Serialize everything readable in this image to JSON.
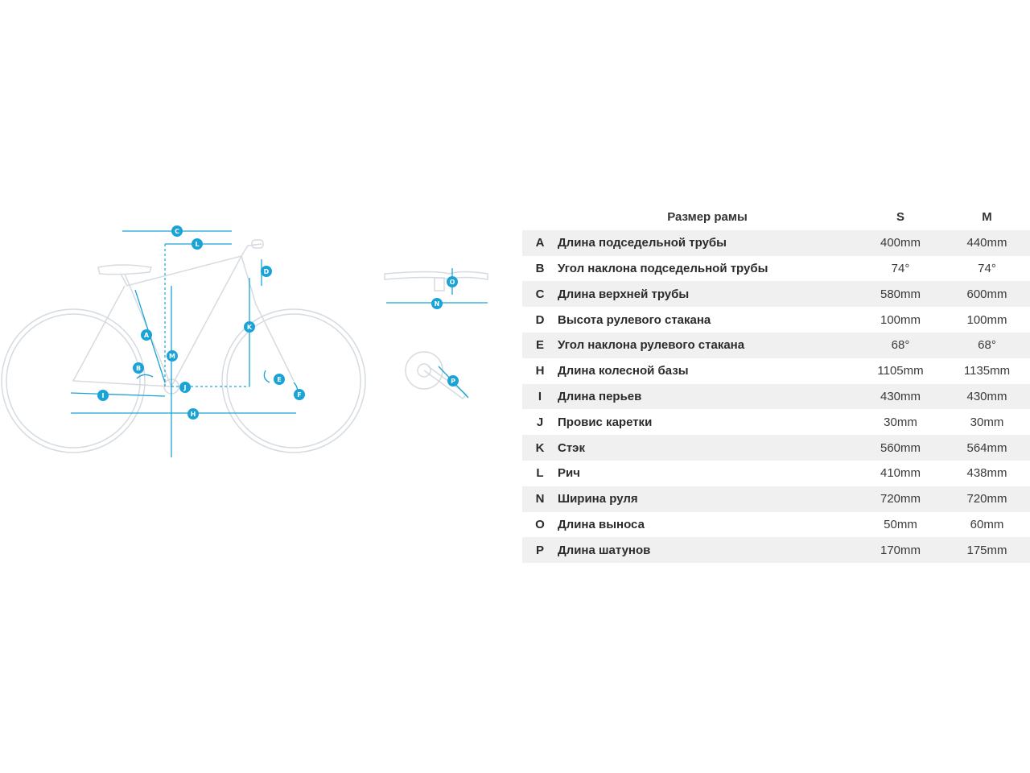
{
  "table": {
    "header": {
      "param": "Размер рамы",
      "sizes": [
        "S",
        "M"
      ]
    },
    "rows": [
      {
        "code": "A",
        "name": "Длина подседельной трубы",
        "s": "400mm",
        "m": "440mm"
      },
      {
        "code": "B",
        "name": "Угол наклона подседельной трубы",
        "s": "74°",
        "m": "74°"
      },
      {
        "code": "C",
        "name": "Длина верхней трубы",
        "s": "580mm",
        "m": "600mm"
      },
      {
        "code": "D",
        "name": "Высота рулевого стакана",
        "s": "100mm",
        "m": "100mm"
      },
      {
        "code": "E",
        "name": "Угол наклона рулевого стакана",
        "s": "68°",
        "m": "68°"
      },
      {
        "code": "H",
        "name": "Длина колесной базы",
        "s": "1105mm",
        "m": "1135mm"
      },
      {
        "code": "I",
        "name": "Длина перьев",
        "s": "430mm",
        "m": "430mm"
      },
      {
        "code": "J",
        "name": "Провис каретки",
        "s": "30mm",
        "m": "30mm"
      },
      {
        "code": "K",
        "name": "Стэк",
        "s": "560mm",
        "m": "564mm"
      },
      {
        "code": "L",
        "name": "Рич",
        "s": "410mm",
        "m": "438mm"
      },
      {
        "code": "N",
        "name": "Ширина руля",
        "s": "720mm",
        "m": "720mm"
      },
      {
        "code": "O",
        "name": "Длина выноса",
        "s": "50mm",
        "m": "60mm"
      },
      {
        "code": "P",
        "name": "Длина шатунов",
        "s": "170mm",
        "m": "175mm"
      }
    ]
  },
  "diagram": {
    "markers": [
      "C",
      "L",
      "D",
      "A",
      "M",
      "K",
      "B",
      "J",
      "E",
      "F",
      "I",
      "H",
      "O",
      "N",
      "P"
    ],
    "accent_color": "#1aa3d6",
    "frame_color": "#d5dbe0"
  }
}
